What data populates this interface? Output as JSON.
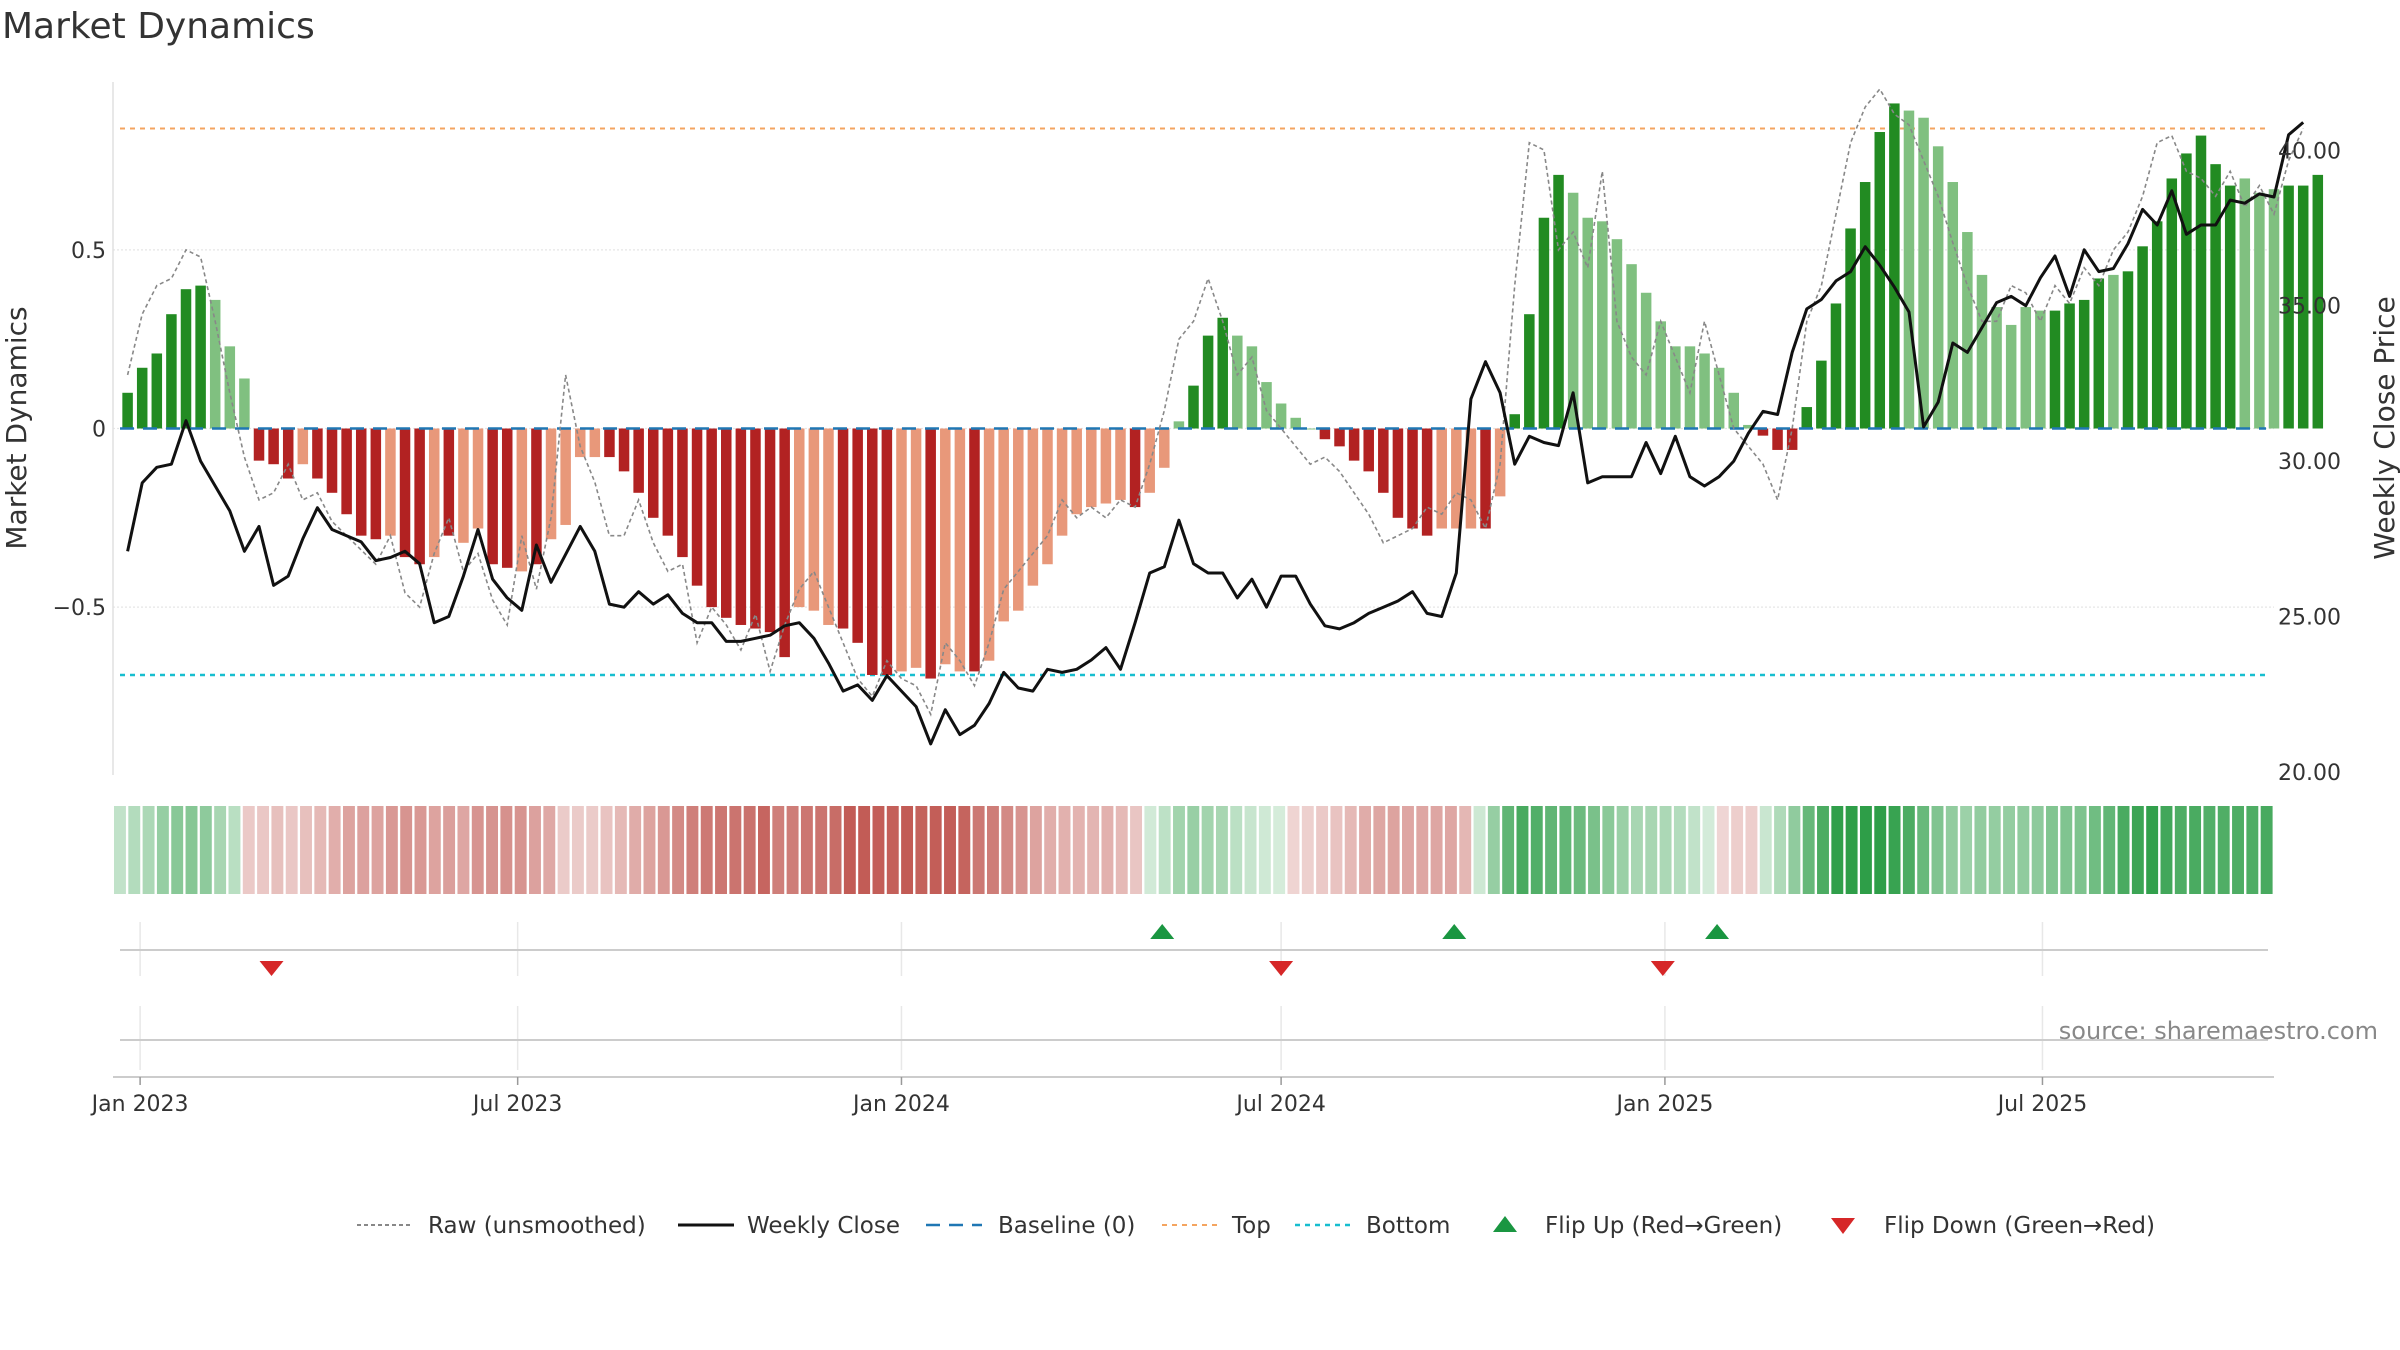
{
  "colors": {
    "green_dark": "#228b22",
    "green_light": "#80c080",
    "red_dark": "#b22222",
    "red_light": "#e8987a",
    "close_line": "#111111",
    "raw_line": "#888888",
    "baseline": "#1f77b4",
    "top": "#f4a460",
    "bottom": "#17becf",
    "flip_up": "#1a9641",
    "flip_down": "#d62728"
  },
  "chart_data": {
    "type": "bar",
    "title": "Market Dynamics",
    "ylabel_left": "Market Dynamics",
    "ylabel_right": "Weekly Close Price",
    "source": "source: sharemaestro.com",
    "x_range": [
      "2022-12-19",
      "2025-10-20"
    ],
    "x_ticks": [
      {
        "date": "2023-01-01",
        "label": "Jan 2023"
      },
      {
        "date": "2023-07-01",
        "label": "Jul 2023"
      },
      {
        "date": "2024-01-01",
        "label": "Jan 2024"
      },
      {
        "date": "2024-07-01",
        "label": "Jul 2024"
      },
      {
        "date": "2025-01-01",
        "label": "Jan 2025"
      },
      {
        "date": "2025-07-01",
        "label": "Jul 2025"
      }
    ],
    "y_left": {
      "range": [
        -0.97,
        0.97
      ],
      "ticks": [
        {
          "v": 0.5,
          "label": "0.5"
        },
        {
          "v": 0,
          "label": "0"
        },
        {
          "v": -0.5,
          "label": "−0.5"
        }
      ]
    },
    "y_right": {
      "range": [
        19.9,
        42.2
      ],
      "ticks": [
        {
          "v": 40,
          "label": "40.00"
        },
        {
          "v": 35,
          "label": "35.00"
        },
        {
          "v": 30,
          "label": "30.00"
        },
        {
          "v": 25,
          "label": "25.00"
        },
        {
          "v": 20,
          "label": "20.00"
        }
      ]
    },
    "top_level": 0.84,
    "bottom_level": -0.69,
    "start_date": "2022-12-26",
    "week_step_days": 7,
    "smoothed": [
      0.1,
      0.17,
      0.21,
      0.32,
      0.39,
      0.4,
      0.36,
      0.23,
      0.14,
      -0.09,
      -0.1,
      -0.14,
      -0.1,
      -0.14,
      -0.18,
      -0.24,
      -0.3,
      -0.31,
      -0.3,
      -0.36,
      -0.38,
      -0.36,
      -0.3,
      -0.32,
      -0.28,
      -0.38,
      -0.39,
      -0.4,
      -0.38,
      -0.31,
      -0.27,
      -0.08,
      -0.08,
      -0.08,
      -0.12,
      -0.18,
      -0.25,
      -0.3,
      -0.36,
      -0.44,
      -0.5,
      -0.53,
      -0.55,
      -0.56,
      -0.57,
      -0.64,
      -0.5,
      -0.51,
      -0.55,
      -0.56,
      -0.6,
      -0.69,
      -0.69,
      -0.68,
      -0.67,
      -0.7,
      -0.66,
      -0.68,
      -0.68,
      -0.65,
      -0.54,
      -0.51,
      -0.44,
      -0.38,
      -0.3,
      -0.24,
      -0.22,
      -0.21,
      -0.2,
      -0.22,
      -0.18,
      -0.11,
      0.02,
      0.12,
      0.26,
      0.31,
      0.26,
      0.23,
      0.13,
      0.07,
      0.03,
      0.0,
      -0.03,
      -0.05,
      -0.09,
      -0.12,
      -0.18,
      -0.25,
      -0.28,
      -0.3,
      -0.28,
      -0.28,
      -0.28,
      -0.28,
      -0.19,
      0.04,
      0.32,
      0.59,
      0.71,
      0.66,
      0.59,
      0.58,
      0.53,
      0.46,
      0.38,
      0.3,
      0.23,
      0.23,
      0.21,
      0.17,
      0.1,
      0.01,
      -0.02,
      -0.06,
      -0.06,
      0.06,
      0.19,
      0.35,
      0.56,
      0.69,
      0.83,
      0.91,
      0.89,
      0.87,
      0.79,
      0.69,
      0.55,
      0.43,
      0.34,
      0.29,
      0.34,
      0.33,
      0.33,
      0.35,
      0.36,
      0.42,
      0.43,
      0.44,
      0.51,
      0.58,
      0.7,
      0.77,
      0.82,
      0.74,
      0.68,
      0.7,
      0.66,
      0.67,
      0.68,
      0.68,
      0.71
    ],
    "bar_shades": [
      "dark",
      "dark",
      "dark",
      "dark",
      "dark",
      "dark",
      "light",
      "light",
      "light",
      "dark",
      "dark",
      "dark",
      "light",
      "dark",
      "dark",
      "dark",
      "dark",
      "dark",
      "light",
      "dark",
      "dark",
      "light",
      "dark",
      "light",
      "light",
      "dark",
      "dark",
      "light",
      "dark",
      "light",
      "light",
      "light",
      "light",
      "dark",
      "dark",
      "dark",
      "dark",
      "dark",
      "dark",
      "dark",
      "dark",
      "dark",
      "dark",
      "dark",
      "dark",
      "dark",
      "light",
      "light",
      "light",
      "dark",
      "dark",
      "dark",
      "dark",
      "light",
      "light",
      "dark",
      "light",
      "light",
      "dark",
      "light",
      "light",
      "light",
      "light",
      "light",
      "light",
      "light",
      "light",
      "light",
      "light",
      "dark",
      "light",
      "light",
      "light",
      "dark",
      "dark",
      "dark",
      "light",
      "light",
      "light",
      "light",
      "light",
      "light",
      "dark",
      "dark",
      "dark",
      "dark",
      "dark",
      "dark",
      "dark",
      "dark",
      "light",
      "light",
      "light",
      "dark",
      "light",
      "dark",
      "dark",
      "dark",
      "dark",
      "light",
      "light",
      "light",
      "light",
      "light",
      "light",
      "light",
      "light",
      "light",
      "light",
      "light",
      "light",
      "light",
      "dark",
      "dark",
      "dark",
      "dark",
      "dark",
      "dark",
      "dark",
      "dark",
      "dark",
      "dark",
      "light",
      "light",
      "light",
      "light",
      "light",
      "light",
      "light",
      "light",
      "light",
      "light",
      "dark",
      "dark",
      "dark",
      "dark",
      "light",
      "dark",
      "dark",
      "dark",
      "dark",
      "dark",
      "dark",
      "dark",
      "dark",
      "light",
      "light",
      "light",
      "dark",
      "dark",
      "dark",
      "dark"
    ],
    "raw": [
      0.15,
      0.32,
      0.4,
      0.42,
      0.5,
      0.48,
      0.3,
      0.1,
      -0.08,
      -0.2,
      -0.18,
      -0.1,
      -0.2,
      -0.18,
      -0.26,
      -0.3,
      -0.34,
      -0.38,
      -0.3,
      -0.46,
      -0.5,
      -0.35,
      -0.25,
      -0.4,
      -0.35,
      -0.48,
      -0.55,
      -0.3,
      -0.45,
      -0.25,
      0.15,
      -0.05,
      -0.15,
      -0.3,
      -0.3,
      -0.2,
      -0.32,
      -0.4,
      -0.38,
      -0.6,
      -0.5,
      -0.55,
      -0.62,
      -0.52,
      -0.68,
      -0.55,
      -0.45,
      -0.4,
      -0.5,
      -0.6,
      -0.7,
      -0.75,
      -0.65,
      -0.7,
      -0.72,
      -0.8,
      -0.6,
      -0.65,
      -0.72,
      -0.6,
      -0.45,
      -0.4,
      -0.35,
      -0.3,
      -0.2,
      -0.25,
      -0.22,
      -0.25,
      -0.2,
      -0.22,
      -0.1,
      0.05,
      0.25,
      0.3,
      0.42,
      0.3,
      0.15,
      0.2,
      0.05,
      0.0,
      -0.05,
      -0.1,
      -0.08,
      -0.12,
      -0.18,
      -0.24,
      -0.32,
      -0.3,
      -0.28,
      -0.22,
      -0.24,
      -0.18,
      -0.2,
      -0.28,
      -0.1,
      0.4,
      0.8,
      0.78,
      0.5,
      0.55,
      0.45,
      0.72,
      0.3,
      0.2,
      0.15,
      0.3,
      0.2,
      0.1,
      0.3,
      0.15,
      0.0,
      -0.05,
      -0.1,
      -0.2,
      0.0,
      0.3,
      0.4,
      0.6,
      0.8,
      0.9,
      0.95,
      0.88,
      0.85,
      0.75,
      0.65,
      0.52,
      0.4,
      0.3,
      0.3,
      0.4,
      0.38,
      0.3,
      0.4,
      0.35,
      0.45,
      0.4,
      0.5,
      0.55,
      0.65,
      0.8,
      0.82,
      0.72,
      0.7,
      0.65,
      0.72,
      0.62,
      0.68,
      0.6,
      0.75,
      0.84
    ],
    "close": [
      27.1,
      29.3,
      29.8,
      29.9,
      31.3,
      30.0,
      29.2,
      28.4,
      27.1,
      27.9,
      26.0,
      26.3,
      27.5,
      28.5,
      27.8,
      27.6,
      27.4,
      26.8,
      26.9,
      27.1,
      26.7,
      24.8,
      25.0,
      26.3,
      27.8,
      26.2,
      25.6,
      25.2,
      27.3,
      26.1,
      27.0,
      27.9,
      27.1,
      25.4,
      25.3,
      25.8,
      25.4,
      25.7,
      25.1,
      24.8,
      24.8,
      24.2,
      24.2,
      24.3,
      24.4,
      24.7,
      24.8,
      24.3,
      23.5,
      22.6,
      22.8,
      22.3,
      23.1,
      22.6,
      22.1,
      20.9,
      22.0,
      21.2,
      21.5,
      22.2,
      23.2,
      22.7,
      22.6,
      23.3,
      23.2,
      23.3,
      23.6,
      24.0,
      23.3,
      24.8,
      26.4,
      26.6,
      28.1,
      26.7,
      26.4,
      26.4,
      25.6,
      26.2,
      25.3,
      26.3,
      26.3,
      25.4,
      24.7,
      24.6,
      24.8,
      25.1,
      25.3,
      25.5,
      25.8,
      25.1,
      25.0,
      26.4,
      32.0,
      33.2,
      32.2,
      29.9,
      30.8,
      30.6,
      30.5,
      32.2,
      29.3,
      29.5,
      29.5,
      29.5,
      30.6,
      29.6,
      30.8,
      29.5,
      29.2,
      29.5,
      30.0,
      30.9,
      31.6,
      31.5,
      33.5,
      34.9,
      35.2,
      35.8,
      36.1,
      36.9,
      36.3,
      35.6,
      34.8,
      31.1,
      31.9,
      33.8,
      33.5,
      34.3,
      35.1,
      35.3,
      35.0,
      35.9,
      36.6,
      35.3,
      36.8,
      36.1,
      36.2,
      37.0,
      38.1,
      37.6,
      38.7,
      37.3,
      37.6,
      37.6,
      38.4,
      38.3,
      38.6,
      38.5,
      40.5,
      40.9
    ],
    "flips": [
      {
        "type": "down",
        "date": "2023-03-05"
      },
      {
        "type": "up",
        "date": "2024-05-05"
      },
      {
        "type": "down",
        "date": "2024-07-01"
      },
      {
        "type": "up",
        "date": "2024-09-22"
      },
      {
        "type": "down",
        "date": "2024-12-31"
      },
      {
        "type": "up",
        "date": "2025-01-26"
      }
    ],
    "legend": [
      {
        "key": "raw",
        "label": "Raw (unsmoothed)"
      },
      {
        "key": "close",
        "label": "Weekly Close"
      },
      {
        "key": "baseline",
        "label": "Baseline (0)"
      },
      {
        "key": "top",
        "label": "Top"
      },
      {
        "key": "bottom",
        "label": "Bottom"
      },
      {
        "key": "flip_up",
        "label": "Flip Up (Red→Green)"
      },
      {
        "key": "flip_down",
        "label": "Flip Down (Green→Red)"
      }
    ],
    "legend_position": "bottom-center",
    "grid": true
  }
}
